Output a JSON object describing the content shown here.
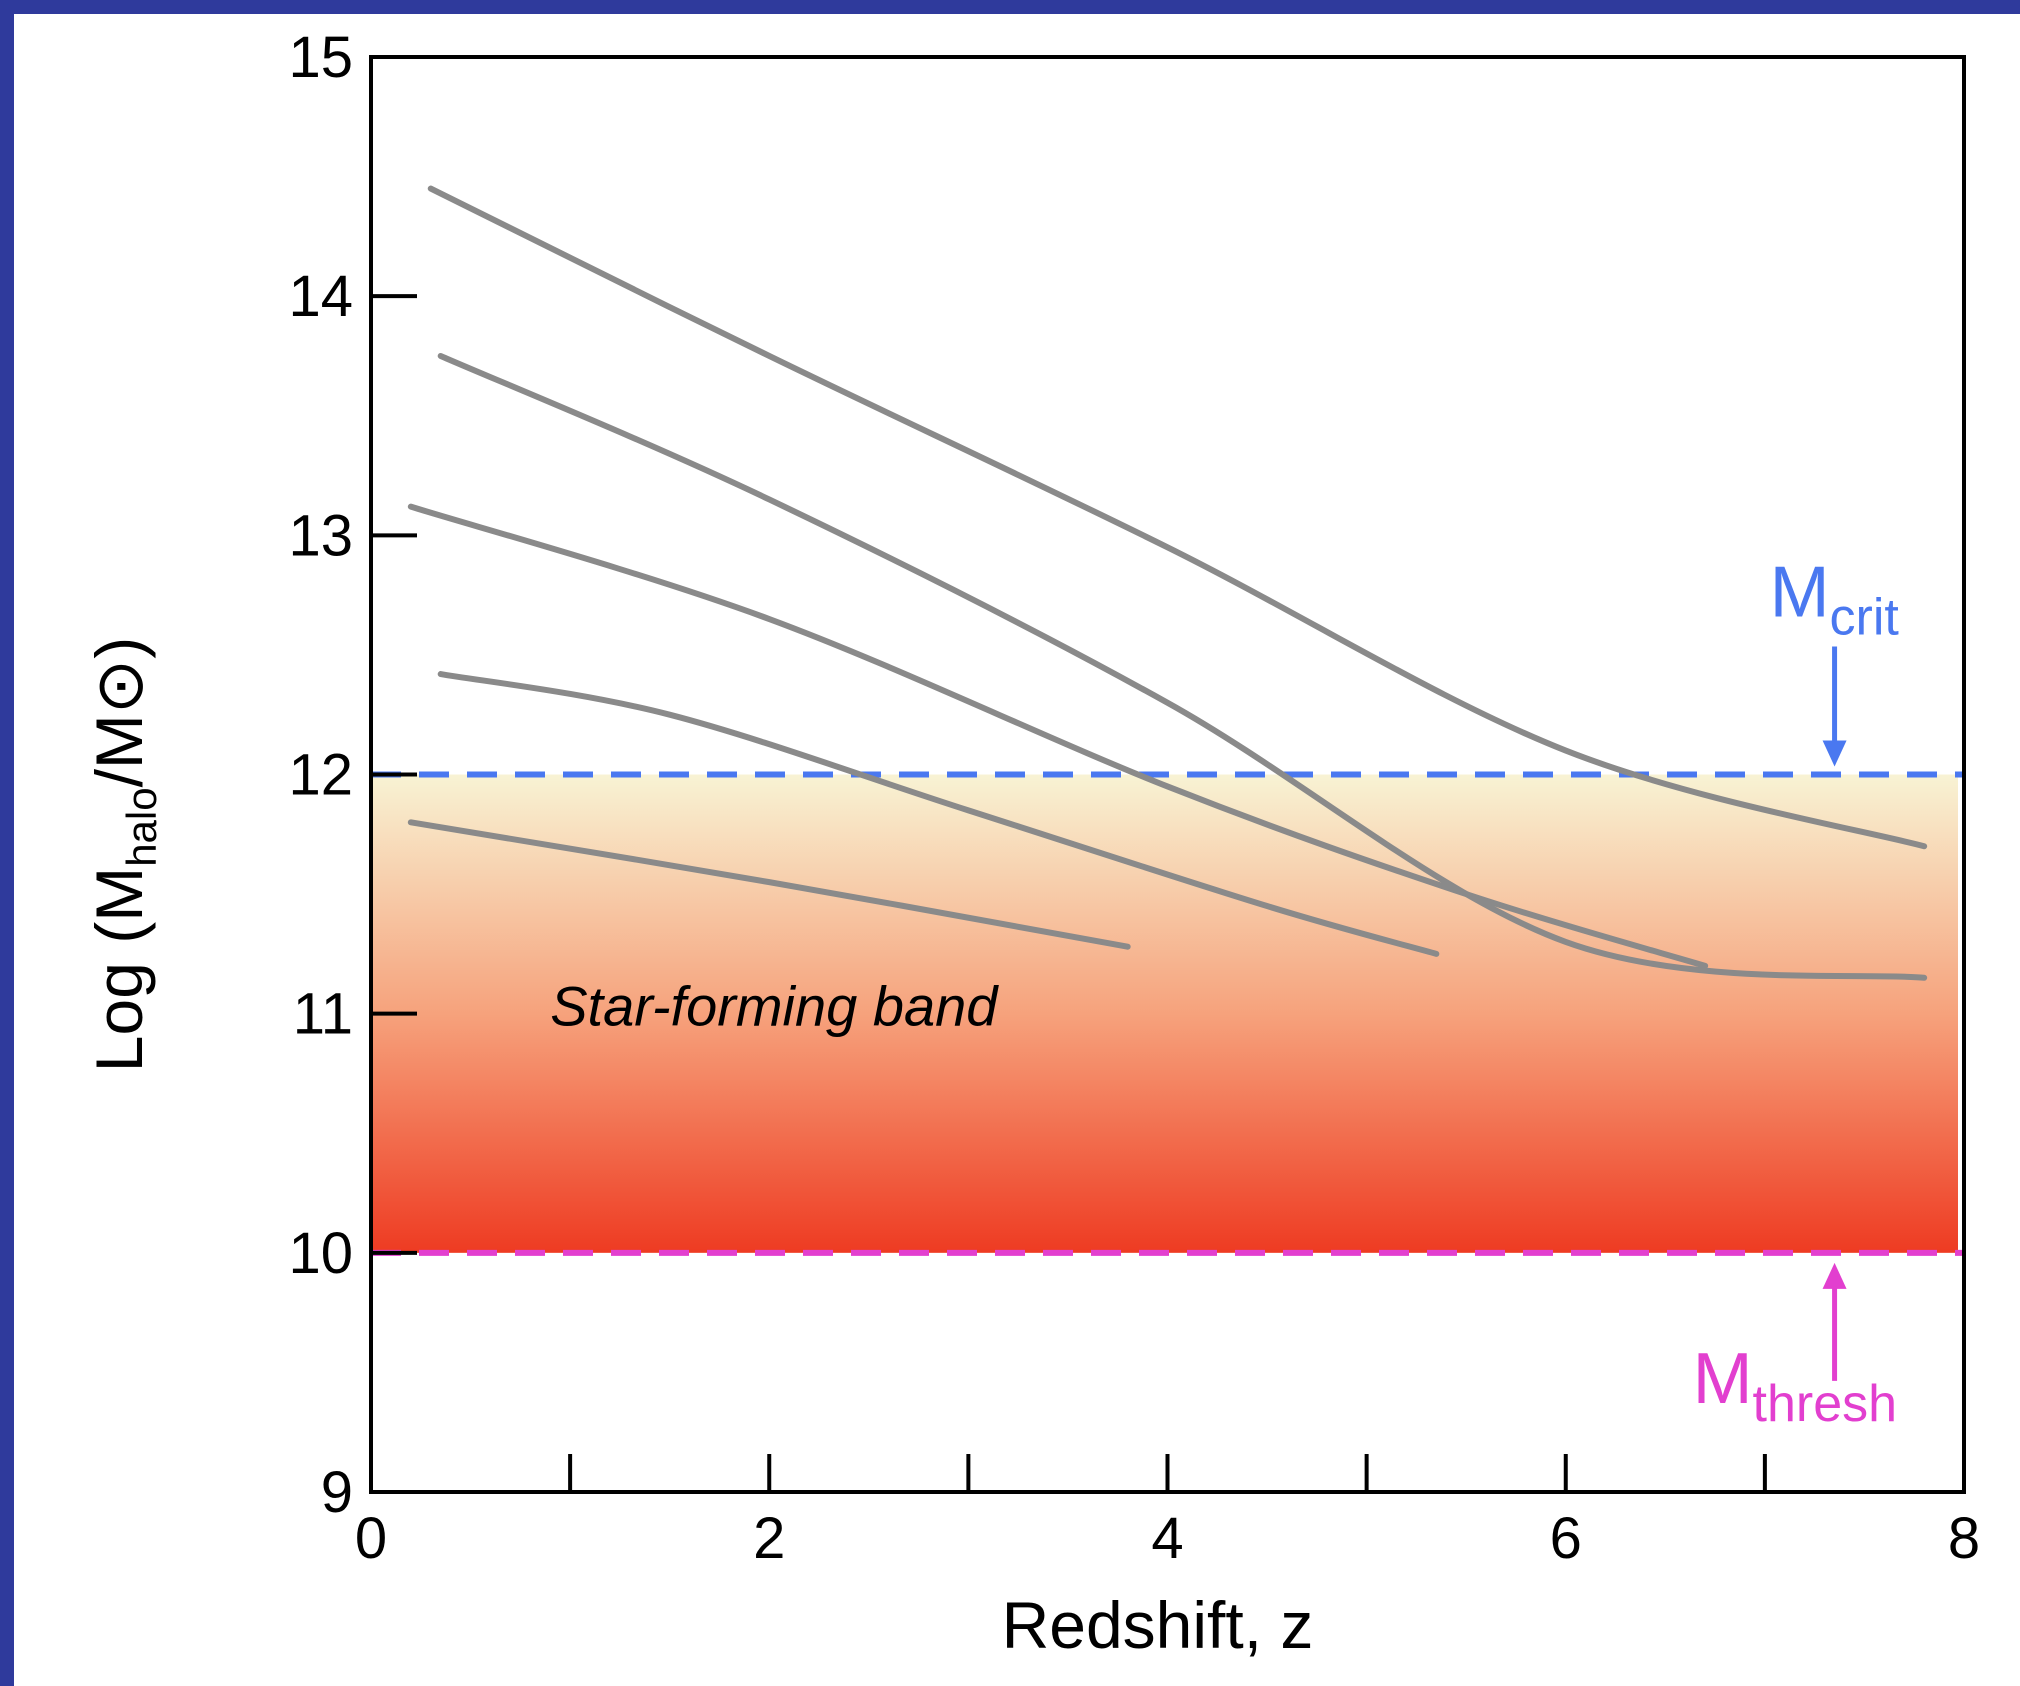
{
  "chart_data": {
    "type": "line",
    "title": "",
    "xlabel": "Redshift, z",
    "ylabel": {
      "base": "Log (M",
      "sub": "halo",
      "mid": "/M",
      "sun": "⊙",
      "end": ")"
    },
    "xlim": [
      0,
      8
    ],
    "ylim": [
      9,
      15
    ],
    "x_ticks": [
      0,
      2,
      4,
      6,
      8
    ],
    "x_minor_ticks": [
      1,
      2,
      3,
      4,
      5,
      6,
      7
    ],
    "y_ticks": [
      9,
      10,
      11,
      12,
      13,
      14,
      15
    ],
    "y_minor_ticks": [
      10,
      11,
      12,
      13,
      14
    ],
    "band": {
      "label": "Star-forming band",
      "y_min": 10,
      "y_max": 12,
      "color_bottom": "#ee3b22",
      "color_mid": "#f6a27c",
      "color_top": "#f8f3d4"
    },
    "reference_lines": [
      {
        "name": "M_crit",
        "label_main": "M",
        "label_sub": "crit",
        "y": 12,
        "color": "#4a78f0",
        "style": "dashed",
        "arrow": "down",
        "arrow_x": 7.35
      },
      {
        "name": "M_thresh",
        "label_main": "M",
        "label_sub": "thresh",
        "y": 10,
        "color": "#e23fcf",
        "style": "dashed",
        "arrow": "up",
        "arrow_x": 7.35
      }
    ],
    "series": [
      {
        "x": [
          0.3,
          2.0,
          4.0,
          6.0,
          7.8
        ],
        "y": [
          14.45,
          13.75,
          12.95,
          12.1,
          11.7
        ]
      },
      {
        "x": [
          0.35,
          2.0,
          4.0,
          6.0,
          7.8
        ],
        "y": [
          13.75,
          13.15,
          12.3,
          11.3,
          11.15
        ]
      },
      {
        "x": [
          0.2,
          2.0,
          4.0,
          5.5,
          6.7
        ],
        "y": [
          13.12,
          12.65,
          11.95,
          11.5,
          11.2
        ]
      },
      {
        "x": [
          0.35,
          1.5,
          3.0,
          4.5,
          5.35
        ],
        "y": [
          12.42,
          12.25,
          11.85,
          11.45,
          11.25
        ]
      },
      {
        "x": [
          0.2,
          2.0,
          3.8
        ],
        "y": [
          11.8,
          11.55,
          11.28
        ]
      }
    ],
    "series_color": "#8a8a8a"
  }
}
